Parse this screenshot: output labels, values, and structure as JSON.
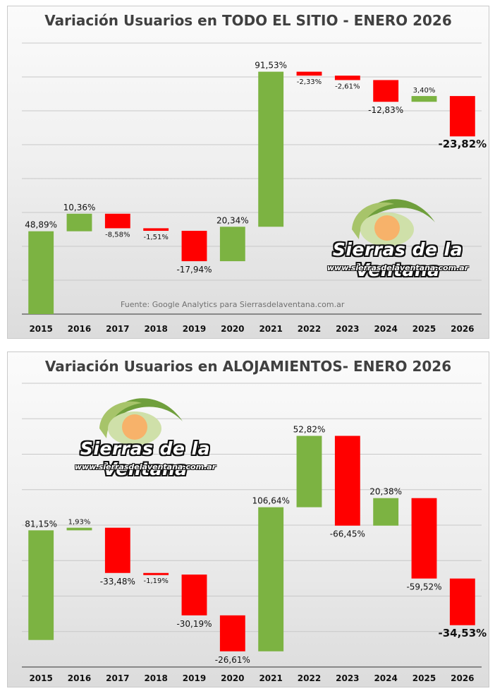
{
  "colors": {
    "positive": "#7cb342",
    "negative": "#ff0000",
    "grid": "#c8c8c8",
    "axis": "#555555"
  },
  "logo": {
    "name": "Sierras de la Ventana",
    "url": "www.sierrasdelaventana.com.ar"
  },
  "chart_data": [
    {
      "type": "waterfall",
      "title": "Variación Usuarios en TODO EL SITIO  - ENERO 2026",
      "source": "Fuente:  Google Analytics para Sierrasdelaventana.com.ar",
      "categories": [
        "2015",
        "2016",
        "2017",
        "2018",
        "2019",
        "2020",
        "2021",
        "2022",
        "2023",
        "2024",
        "2025",
        "2026"
      ],
      "values": [
        48.89,
        10.36,
        -8.58,
        -1.51,
        -17.94,
        20.34,
        91.53,
        -2.33,
        -2.61,
        -12.83,
        3.4,
        -23.82
      ],
      "labels": [
        "48,89%",
        "10,36%",
        "-8,58%",
        "-1,51%",
        "-17,94%",
        "20,34%",
        "91,53%",
        "-2,33%",
        "-2,61%",
        "-12,83%",
        "3,40%",
        "-23,82%"
      ],
      "grid": true,
      "legend": "none"
    },
    {
      "type": "waterfall",
      "title": "Variación Usuarios en ALOJAMIENTOS- ENERO 2026",
      "categories": [
        "2015",
        "2016",
        "2017",
        "2018",
        "2019",
        "2020",
        "2021",
        "2022",
        "2023",
        "2024",
        "2025",
        "2026"
      ],
      "values": [
        81.15,
        1.93,
        -33.48,
        -1.19,
        -30.19,
        -26.61,
        106.64,
        52.82,
        -66.45,
        20.38,
        -59.52,
        -34.53
      ],
      "labels": [
        "81,15%",
        "1,93%",
        "-33,48%",
        "-1,19%",
        "-30,19%",
        "-26,61%",
        "106,64%",
        "52,82%",
        "-66,45%",
        "20,38%",
        "-59,52%",
        "-34,53%"
      ],
      "grid": true,
      "legend": "none"
    }
  ]
}
